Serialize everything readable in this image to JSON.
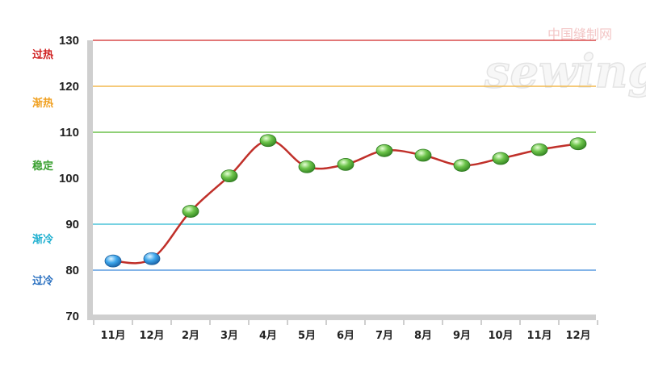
{
  "watermark": {
    "cn_text": "中国缝制网",
    "logo_text": "sewing"
  },
  "chart_data": {
    "type": "line",
    "title": "",
    "xlabel": "",
    "ylabel": "",
    "categories": [
      "11月",
      "12月",
      "2月",
      "3月",
      "4月",
      "5月",
      "6月",
      "7月",
      "8月",
      "9月",
      "10月",
      "11月",
      "12月"
    ],
    "series": [
      {
        "values": [
          82,
          82.5,
          92.8,
          100.5,
          108.2,
          102.5,
          103,
          106,
          105,
          102.8,
          104.3,
          106.2,
          107.5
        ],
        "marker_colors": [
          "blue",
          "blue",
          "green",
          "green",
          "green",
          "green",
          "green",
          "green",
          "green",
          "green",
          "green",
          "green",
          "green"
        ]
      }
    ],
    "ylim": [
      70,
      130
    ],
    "yticks": [
      "70",
      "80",
      "90",
      "100",
      "110",
      "120",
      "130"
    ],
    "grid": false,
    "reference_lines": [
      {
        "value": 130,
        "color": "#d94a4a"
      },
      {
        "value": 120,
        "color": "#f2b94e"
      },
      {
        "value": 110,
        "color": "#6cc04a"
      },
      {
        "value": 90,
        "color": "#4bc3d8"
      },
      {
        "value": 80,
        "color": "#5a9be0"
      }
    ],
    "band_labels": [
      {
        "text": "过热",
        "value": 127,
        "color": "#d02020"
      },
      {
        "text": "渐热",
        "value": 116.5,
        "color": "#f0a020"
      },
      {
        "text": "稳定",
        "value": 102.8,
        "color": "#3aa030"
      },
      {
        "text": "渐冷",
        "value": 86.8,
        "color": "#20b0d0"
      },
      {
        "text": "过冷",
        "value": 77.8,
        "color": "#2a70c0"
      }
    ],
    "colors": {
      "line": "#c0302a",
      "marker_green": "#3e9e2c",
      "marker_blue": "#1f7fcf",
      "axis": "#cfcfcf"
    }
  }
}
